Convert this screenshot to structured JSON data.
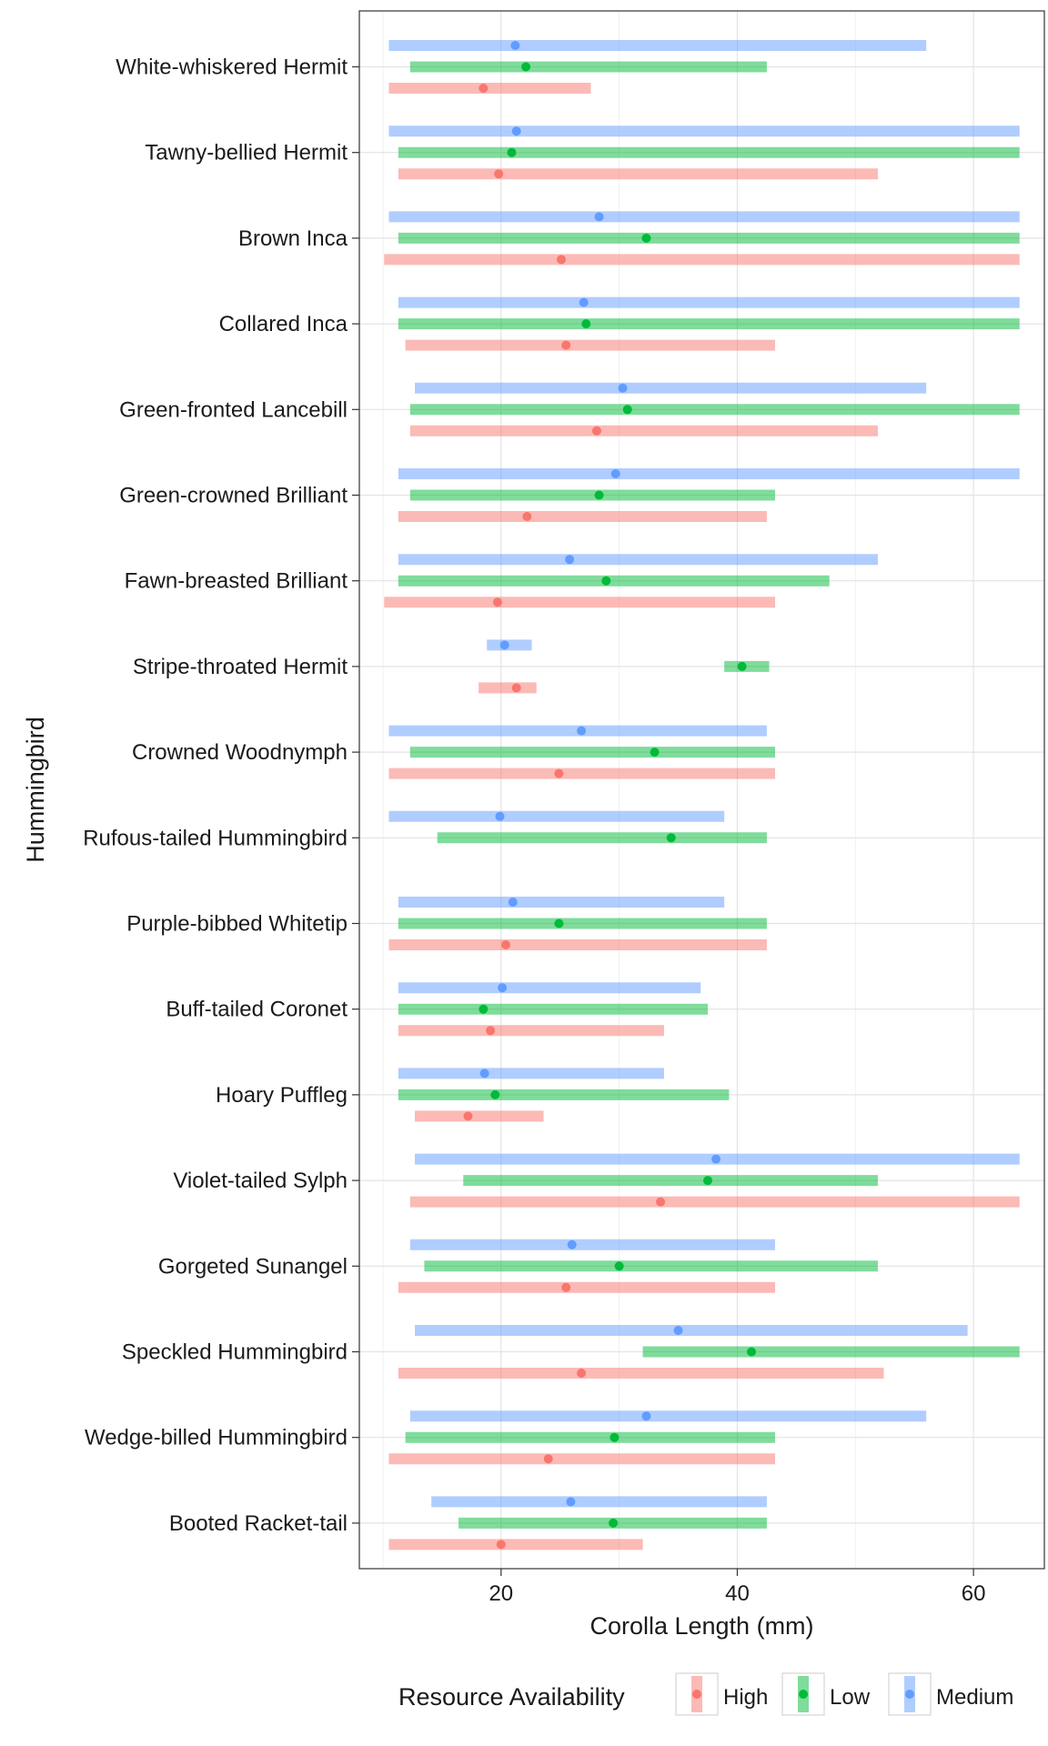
{
  "chart_data": {
    "type": "range",
    "title": "",
    "xlabel": "Corolla Length (mm)",
    "ylabel": "Hummingbird",
    "xlim": [
      8,
      66
    ],
    "xticks": [
      20,
      40,
      60
    ],
    "grid": true,
    "legend": {
      "title": "Resource Availability",
      "position": "bottom",
      "items": [
        {
          "name": "High",
          "color": "#F8766D"
        },
        {
          "name": "Low",
          "color": "#00BA38"
        },
        {
          "name": "Medium",
          "color": "#619CFF"
        }
      ]
    },
    "categories": [
      "White-whiskered Hermit",
      "Tawny-bellied Hermit",
      "Brown Inca",
      "Collared Inca",
      "Green-fronted Lancebill",
      "Green-crowned Brilliant",
      "Fawn-breasted Brilliant",
      "Stripe-throated Hermit",
      "Crowned Woodnymph",
      "Rufous-tailed Hummingbird",
      "Purple-bibbed Whitetip",
      "Buff-tailed Coronet",
      "Hoary Puffleg",
      "Violet-tailed Sylph",
      "Gorgeted Sunangel",
      "Speckled Hummingbird",
      "Wedge-billed Hummingbird",
      "Booted Racket-tail"
    ],
    "series": [
      {
        "name": "Medium",
        "color": "#619CFF",
        "data": [
          {
            "min": 10.5,
            "max": 56.0,
            "mean": 21.2
          },
          {
            "min": 10.5,
            "max": 63.9,
            "mean": 21.3
          },
          {
            "min": 10.5,
            "max": 63.9,
            "mean": 28.3
          },
          {
            "min": 11.3,
            "max": 63.9,
            "mean": 27.0
          },
          {
            "min": 12.7,
            "max": 56.0,
            "mean": 30.3
          },
          {
            "min": 11.3,
            "max": 63.9,
            "mean": 29.7
          },
          {
            "min": 11.3,
            "max": 51.9,
            "mean": 25.8
          },
          {
            "min": 18.8,
            "max": 22.6,
            "mean": 20.3
          },
          {
            "min": 10.5,
            "max": 42.5,
            "mean": 26.8
          },
          {
            "min": 10.5,
            "max": 38.9,
            "mean": 19.9
          },
          {
            "min": 11.3,
            "max": 38.9,
            "mean": 21.0
          },
          {
            "min": 11.3,
            "max": 36.9,
            "mean": 20.1
          },
          {
            "min": 11.3,
            "max": 33.8,
            "mean": 18.6
          },
          {
            "min": 12.7,
            "max": 63.9,
            "mean": 38.2
          },
          {
            "min": 12.3,
            "max": 43.2,
            "mean": 26.0
          },
          {
            "min": 12.7,
            "max": 59.5,
            "mean": 35.0
          },
          {
            "min": 12.3,
            "max": 56.0,
            "mean": 32.3
          },
          {
            "min": 14.1,
            "max": 42.5,
            "mean": 25.9
          }
        ]
      },
      {
        "name": "Low",
        "color": "#00BA38",
        "data": [
          {
            "min": 12.3,
            "max": 42.5,
            "mean": 22.1
          },
          {
            "min": 11.3,
            "max": 63.9,
            "mean": 20.9
          },
          {
            "min": 11.3,
            "max": 63.9,
            "mean": 32.3
          },
          {
            "min": 11.3,
            "max": 63.9,
            "mean": 27.2
          },
          {
            "min": 12.3,
            "max": 63.9,
            "mean": 30.7
          },
          {
            "min": 12.3,
            "max": 43.2,
            "mean": 28.3
          },
          {
            "min": 11.3,
            "max": 47.8,
            "mean": 28.9
          },
          {
            "min": 38.9,
            "max": 42.7,
            "mean": 40.4
          },
          {
            "min": 12.3,
            "max": 43.2,
            "mean": 33.0
          },
          {
            "min": 14.6,
            "max": 42.5,
            "mean": 34.4
          },
          {
            "min": 11.3,
            "max": 42.5,
            "mean": 24.9
          },
          {
            "min": 11.3,
            "max": 37.5,
            "mean": 18.5
          },
          {
            "min": 11.3,
            "max": 39.3,
            "mean": 19.5
          },
          {
            "min": 16.8,
            "max": 51.9,
            "mean": 37.5
          },
          {
            "min": 13.5,
            "max": 51.9,
            "mean": 30.0
          },
          {
            "min": 32.0,
            "max": 63.9,
            "mean": 41.2
          },
          {
            "min": 11.9,
            "max": 43.2,
            "mean": 29.6
          },
          {
            "min": 16.4,
            "max": 42.5,
            "mean": 29.5
          }
        ]
      },
      {
        "name": "High",
        "color": "#F8766D",
        "data": [
          {
            "min": 10.5,
            "max": 27.6,
            "mean": 18.5
          },
          {
            "min": 11.3,
            "max": 51.9,
            "mean": 19.8
          },
          {
            "min": 10.1,
            "max": 63.9,
            "mean": 25.1
          },
          {
            "min": 11.9,
            "max": 43.2,
            "mean": 25.5
          },
          {
            "min": 12.3,
            "max": 51.9,
            "mean": 28.1
          },
          {
            "min": 11.3,
            "max": 42.5,
            "mean": 22.2
          },
          {
            "min": 10.1,
            "max": 43.2,
            "mean": 19.7
          },
          {
            "min": 18.1,
            "max": 23.0,
            "mean": 21.3
          },
          {
            "min": 10.5,
            "max": 43.2,
            "mean": 24.9
          },
          null,
          {
            "min": 10.5,
            "max": 42.5,
            "mean": 20.4
          },
          {
            "min": 11.3,
            "max": 33.8,
            "mean": 19.1
          },
          {
            "min": 12.7,
            "max": 23.6,
            "mean": 17.2
          },
          {
            "min": 12.3,
            "max": 63.9,
            "mean": 33.5
          },
          {
            "min": 11.3,
            "max": 43.2,
            "mean": 25.5
          },
          {
            "min": 11.3,
            "max": 52.4,
            "mean": 26.8
          },
          {
            "min": 10.5,
            "max": 43.2,
            "mean": 24.0
          },
          {
            "min": 10.5,
            "max": 32.0,
            "mean": 20.0
          }
        ]
      }
    ]
  }
}
